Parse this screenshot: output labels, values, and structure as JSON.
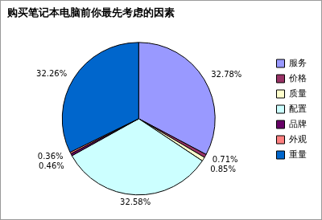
{
  "chart_data": {
    "type": "pie",
    "title": "购买笔记本电脑前你最先考虑的因素",
    "categories": [
      "服务",
      "价格",
      "质量",
      "配置",
      "品牌",
      "外观",
      "重量"
    ],
    "values": [
      32.78,
      0.71,
      0.85,
      32.58,
      0.46,
      0.36,
      32.26
    ],
    "value_labels": [
      "32.78%",
      "0.71%",
      "0.85%",
      "32.58%",
      "0.46%",
      "0.36%",
      "32.26%"
    ],
    "colors": [
      "#9999ff",
      "#993366",
      "#ffffcc",
      "#ccffff",
      "#660066",
      "#ff8080",
      "#0066cc"
    ],
    "legend": "right",
    "data_labels": true
  }
}
